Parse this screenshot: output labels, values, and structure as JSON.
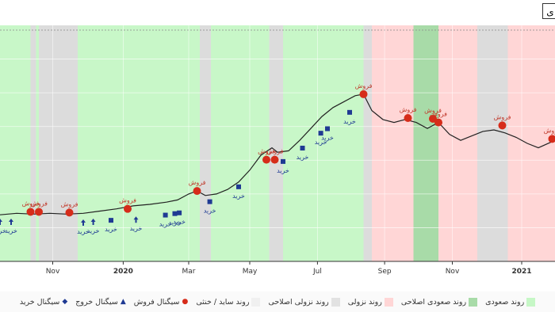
{
  "chart_data": {
    "type": "line",
    "title": "",
    "xlabel": "",
    "ylabel": "",
    "x_ticks": [
      {
        "label": "Nov",
        "t": 0.095,
        "bold": false
      },
      {
        "label": "2020",
        "t": 0.222,
        "bold": true
      },
      {
        "label": "Mar",
        "t": 0.34,
        "bold": false
      },
      {
        "label": "May",
        "t": 0.45,
        "bold": false
      },
      {
        "label": "Jul",
        "t": 0.572,
        "bold": false
      },
      {
        "label": "Sep",
        "t": 0.693,
        "bold": false
      },
      {
        "label": "Nov",
        "t": 0.815,
        "bold": false
      },
      {
        "label": "2021",
        "t": 0.94,
        "bold": true
      }
    ],
    "ylim": [
      0,
      100
    ],
    "grid": true,
    "regions": [
      {
        "type": "up",
        "start": 0.0,
        "end": 0.055
      },
      {
        "type": "corr_down",
        "start": 0.055,
        "end": 0.065
      },
      {
        "type": "up",
        "start": 0.065,
        "end": 0.07
      },
      {
        "type": "corr_down",
        "start": 0.07,
        "end": 0.14
      },
      {
        "type": "up",
        "start": 0.14,
        "end": 0.36
      },
      {
        "type": "corr_down",
        "start": 0.36,
        "end": 0.38
      },
      {
        "type": "up",
        "start": 0.38,
        "end": 0.485
      },
      {
        "type": "corr_down",
        "start": 0.485,
        "end": 0.51
      },
      {
        "type": "up",
        "start": 0.51,
        "end": 0.655
      },
      {
        "type": "corr_down",
        "start": 0.655,
        "end": 0.67
      },
      {
        "type": "down",
        "start": 0.67,
        "end": 0.745
      },
      {
        "type": "corr_up",
        "start": 0.745,
        "end": 0.79
      },
      {
        "type": "down",
        "start": 0.79,
        "end": 0.86
      },
      {
        "type": "corr_down",
        "start": 0.86,
        "end": 0.915
      },
      {
        "type": "down",
        "start": 0.915,
        "end": 1.0
      }
    ],
    "series": [
      {
        "values": [
          [
            0.0,
            10.0
          ],
          [
            0.03,
            11.0
          ],
          [
            0.06,
            10.5
          ],
          [
            0.09,
            11.0
          ],
          [
            0.12,
            10.5
          ],
          [
            0.15,
            11.0
          ],
          [
            0.18,
            12.5
          ],
          [
            0.21,
            14.0
          ],
          [
            0.24,
            16.0
          ],
          [
            0.27,
            17.0
          ],
          [
            0.3,
            18.5
          ],
          [
            0.32,
            20.0
          ],
          [
            0.34,
            24.0
          ],
          [
            0.355,
            26.0
          ],
          [
            0.37,
            23.0
          ],
          [
            0.39,
            24.0
          ],
          [
            0.41,
            27.0
          ],
          [
            0.43,
            32.0
          ],
          [
            0.45,
            40.0
          ],
          [
            0.47,
            50.0
          ],
          [
            0.49,
            55.0
          ],
          [
            0.5,
            52.0
          ],
          [
            0.52,
            53.0
          ],
          [
            0.54,
            60.0
          ],
          [
            0.56,
            68.0
          ],
          [
            0.58,
            76.0
          ],
          [
            0.6,
            82.0
          ],
          [
            0.62,
            86.0
          ],
          [
            0.64,
            90.0
          ],
          [
            0.655,
            91.0
          ],
          [
            0.67,
            80.0
          ],
          [
            0.69,
            74.0
          ],
          [
            0.71,
            72.0
          ],
          [
            0.73,
            74.0
          ],
          [
            0.75,
            72.0
          ],
          [
            0.77,
            68.0
          ],
          [
            0.79,
            72.0
          ],
          [
            0.81,
            64.0
          ],
          [
            0.83,
            60.0
          ],
          [
            0.85,
            63.0
          ],
          [
            0.87,
            66.0
          ],
          [
            0.89,
            67.0
          ],
          [
            0.91,
            65.0
          ],
          [
            0.93,
            62.0
          ],
          [
            0.95,
            58.0
          ],
          [
            0.97,
            55.0
          ],
          [
            1.0,
            60.0
          ]
        ]
      }
    ],
    "sell_signals": [
      {
        "x": 0.055,
        "y": 12.0,
        "label": "فروش"
      },
      {
        "x": 0.07,
        "y": 12.0,
        "label": "فروش"
      },
      {
        "x": 0.125,
        "y": 11.5,
        "label": "فروش"
      },
      {
        "x": 0.23,
        "y": 14.0,
        "label": "فروش"
      },
      {
        "x": 0.355,
        "y": 26.0,
        "label": "فروش"
      },
      {
        "x": 0.48,
        "y": 47.0,
        "label": "فروش"
      },
      {
        "x": 0.495,
        "y": 47.0,
        "label": "فروش"
      },
      {
        "x": 0.655,
        "y": 91.0,
        "label": "فروش"
      },
      {
        "x": 0.735,
        "y": 75.0,
        "label": "فروش"
      },
      {
        "x": 0.78,
        "y": 74.5,
        "label": "فروش"
      },
      {
        "x": 0.79,
        "y": 72.0,
        "label": "فروش"
      },
      {
        "x": 0.905,
        "y": 70.0,
        "label": "فروش"
      },
      {
        "x": 0.995,
        "y": 61.0,
        "label": "فروش"
      }
    ],
    "buy_signals": [
      {
        "x": 0.0,
        "y": 8.5,
        "label": "خرید",
        "marker": "arrow"
      },
      {
        "x": 0.02,
        "y": 8.5,
        "label": "خرید",
        "marker": "arrow"
      },
      {
        "x": 0.15,
        "y": 8.0,
        "label": "خرید",
        "marker": "arrow"
      },
      {
        "x": 0.168,
        "y": 8.5,
        "label": "خرید",
        "marker": "arrow"
      },
      {
        "x": 0.2,
        "y": 9.5,
        "label": "خرید",
        "marker": "square"
      },
      {
        "x": 0.245,
        "y": 10.0,
        "label": "خرید",
        "marker": "arrow"
      },
      {
        "x": 0.298,
        "y": 13.0,
        "label": "خرید",
        "marker": "square"
      },
      {
        "x": 0.315,
        "y": 14.0,
        "label": "خرید",
        "marker": "square"
      },
      {
        "x": 0.323,
        "y": 14.5,
        "label": "خرید",
        "marker": "square"
      },
      {
        "x": 0.378,
        "y": 22.0,
        "label": "خرید",
        "marker": "square"
      },
      {
        "x": 0.43,
        "y": 32.0,
        "label": "خرید",
        "marker": "square"
      },
      {
        "x": 0.51,
        "y": 49.0,
        "label": "خرید",
        "marker": "square"
      },
      {
        "x": 0.545,
        "y": 58.0,
        "label": "خرید",
        "marker": "square"
      },
      {
        "x": 0.578,
        "y": 68.0,
        "label": "خرید",
        "marker": "square"
      },
      {
        "x": 0.59,
        "y": 71.0,
        "label": "خرید",
        "marker": "square"
      },
      {
        "x": 0.63,
        "y": 82.0,
        "label": "خرید",
        "marker": "square"
      }
    ]
  },
  "legend": [
    {
      "label": "روند صعودی",
      "kind": "swatch",
      "color": "#c6f7c6"
    },
    {
      "label": "روند صعودی اصلاحی",
      "kind": "swatch",
      "color": "#a8dba8"
    },
    {
      "label": "روند نزولی",
      "kind": "swatch",
      "color": "#ffd6d6"
    },
    {
      "label": "روند نزولی اصلاحی",
      "kind": "swatch",
      "color": "#e2e2e2"
    },
    {
      "label": "روند ساید / خنثی",
      "kind": "swatch",
      "color": "#f0f0f0"
    },
    {
      "label": "سیگنال فروش",
      "kind": "dot",
      "color": "#d62c1a"
    },
    {
      "label": "سیگنال خروج",
      "kind": "triangle",
      "color": "#1f3a93"
    },
    {
      "label": "سیگنال خرید",
      "kind": "diamond",
      "color": "#1f3a93"
    }
  ],
  "colors": {
    "up": "#c8f7c8",
    "corr_up": "#a8dba8",
    "down": "#ffd6d6",
    "corr_down": "#dcdcdc",
    "line": "#222222",
    "sell": "#d62c1a",
    "buy": "#1f3a93"
  },
  "corner_button": {
    "label": "ی"
  }
}
